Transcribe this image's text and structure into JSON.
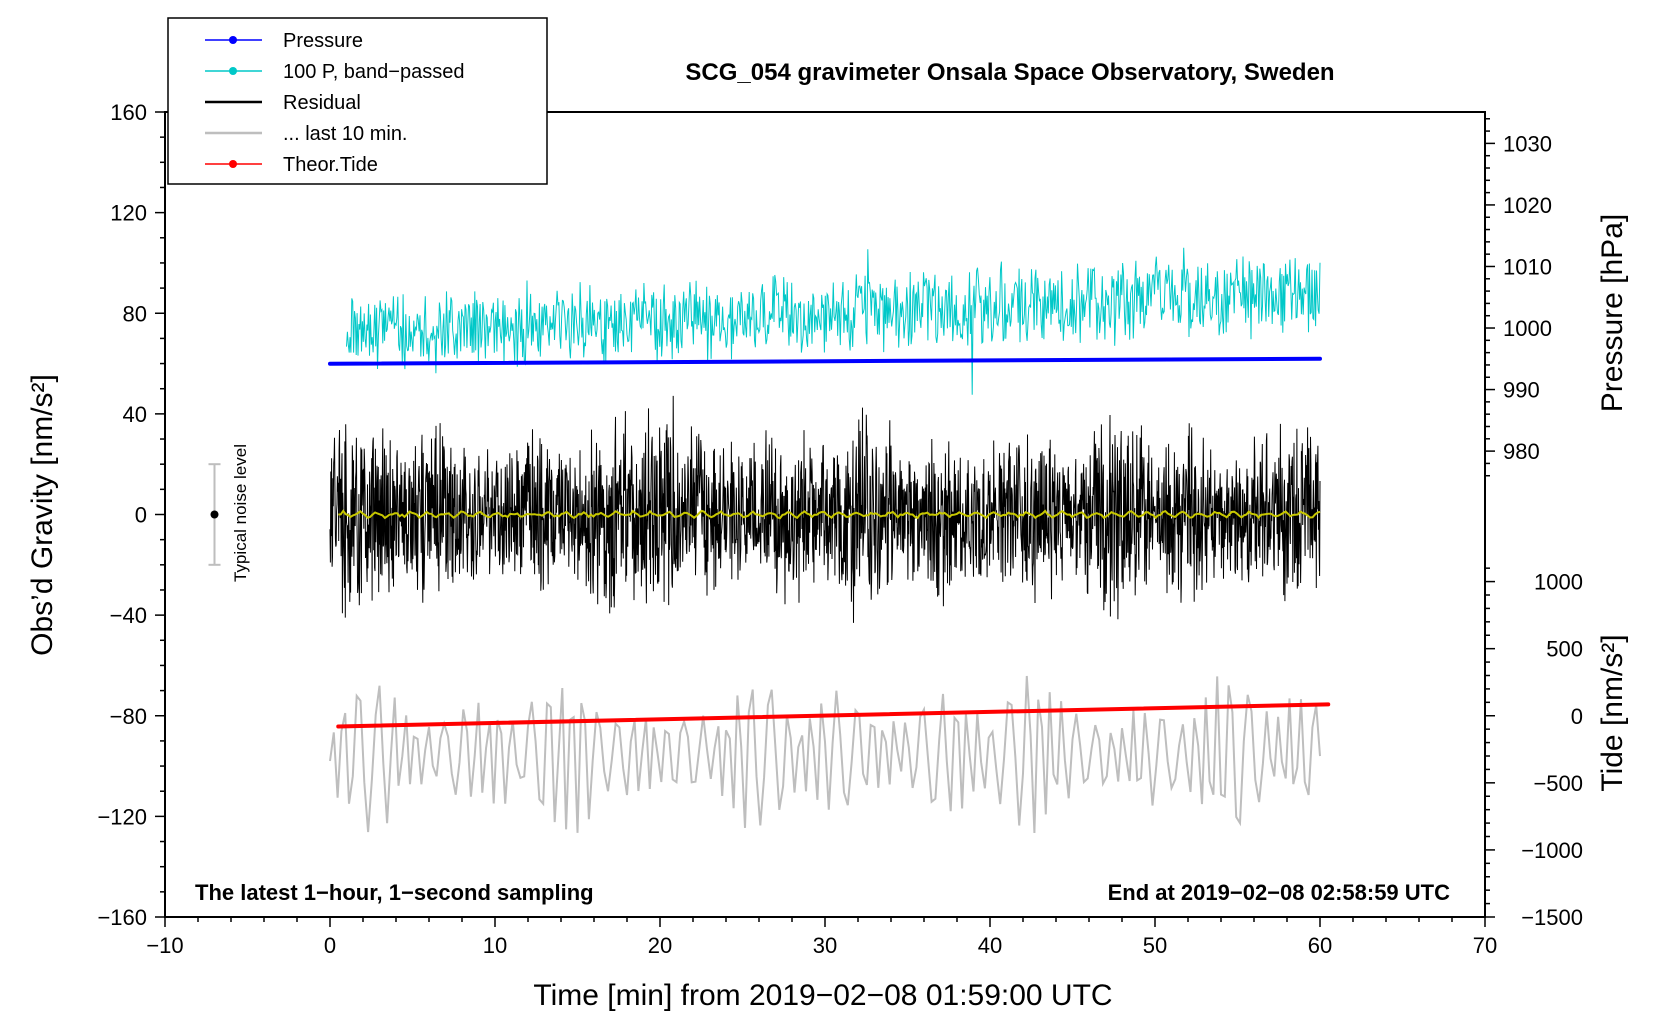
{
  "chart_data": {
    "type": "line",
    "title": "SCG_054 gravimeter Onsala Space Observatory, Sweden",
    "xlabel": "Time [min] from 2019−02−08 01:59:00 UTC",
    "ylabel_left": "Obs’d Gravity [nm/s²]",
    "ylabel_pressure": "Pressure [hPa]",
    "ylabel_tide": "Tide [nm/s²]",
    "xlim": [
      -10,
      70
    ],
    "ylim_left": [
      -160,
      160
    ],
    "x_ticks": [
      -10,
      0,
      10,
      20,
      30,
      40,
      50,
      60,
      70
    ],
    "x_tick_labels": [
      "−10",
      "0",
      "10",
      "20",
      "30",
      "40",
      "50",
      "60",
      "70"
    ],
    "y_ticks_left": [
      160,
      120,
      80,
      40,
      0,
      -40,
      -80,
      -120,
      -160
    ],
    "y_tick_labels_left": [
      "160",
      "120",
      "80",
      "40",
      "0",
      "−40",
      "−80",
      "−120",
      "−160"
    ],
    "pressure_axis": {
      "ticks": [
        1030,
        1020,
        1010,
        1000,
        990,
        980
      ],
      "tick_labels": [
        "1030",
        "1020",
        "1010",
        "1000",
        "990",
        "980"
      ],
      "range_at_left_values": {
        "value_at_left_0": 969.7,
        "value_at_left_160": 1035.1
      }
    },
    "tide_axis": {
      "ticks": [
        1000,
        500,
        0,
        -500,
        -1000,
        -1500
      ],
      "tick_labels": [
        "1000",
        "500",
        "0",
        "−500",
        "−1000",
        "−1500"
      ],
      "range_at_left_values": {
        "value_at_left_minus160": -1500,
        "value_at_left_minus80": 0
      }
    },
    "legend": [
      {
        "label": "Pressure",
        "color": "#0000ff",
        "marker": "dot"
      },
      {
        "label": "100 P, band−passed",
        "color": "#00c8c8",
        "marker": "dot"
      },
      {
        "label": "Residual",
        "color": "#000000",
        "marker": "none"
      },
      {
        "label": "... last 10 min.",
        "color": "#bebebe",
        "marker": "none"
      },
      {
        "label": "Theor.Tide",
        "color": "#ff0000",
        "marker": "dot"
      }
    ],
    "legend_position": "top-left",
    "series": [
      {
        "name": "Pressure",
        "axis": "pressure",
        "color": "#0000ff",
        "x": [
          0,
          60
        ],
        "y": [
          994.2,
          995.0
        ]
      },
      {
        "name": "100 P, band−passed",
        "axis": "left",
        "color": "#00c8c8",
        "x_range": [
          1,
          60
        ],
        "center": [
          72,
          88
        ],
        "amplitude": 18
      },
      {
        "name": "Residual",
        "axis": "left",
        "color": "#000000",
        "x_range": [
          0,
          60
        ],
        "center": [
          0,
          0
        ],
        "amplitude_range": [
          20,
          60
        ]
      },
      {
        "name": "Residual smoothed",
        "axis": "left",
        "color": "#c8c800",
        "x_range": [
          0.5,
          60
        ],
        "center": [
          0,
          0
        ],
        "amplitude": 1.5
      },
      {
        "name": "... last 10 min.",
        "axis": "left",
        "color": "#bebebe",
        "x_range": [
          0,
          60
        ],
        "center": [
          -95,
          -95
        ],
        "amplitude_range": [
          -130,
          -55
        ]
      },
      {
        "name": "Theor.Tide",
        "axis": "tide",
        "color": "#ff0000",
        "x": [
          0.5,
          60.5
        ],
        "y": [
          -80,
          85
        ]
      }
    ],
    "noise_bar": {
      "label": "Typical noise level",
      "x": -7,
      "center": 0,
      "half_range": 20
    },
    "bottom_left_note": "The latest 1−hour, 1−second sampling",
    "bottom_right_note": "End at 2019−02−08 02:58:59 UTC"
  }
}
